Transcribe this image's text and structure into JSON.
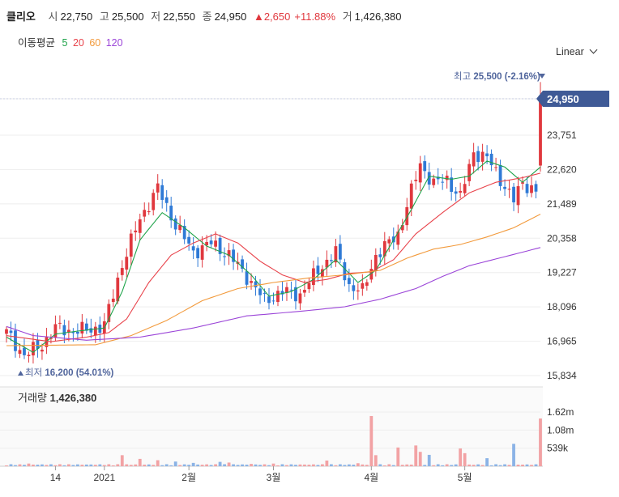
{
  "header": {
    "name": "클리오",
    "open_label": "시",
    "open": "22,750",
    "high_label": "고",
    "high": "25,500",
    "low_label": "저",
    "low": "22,550",
    "close_label": "종",
    "close": "24,950",
    "change": "▲2,650",
    "change_pct": "+11.88%",
    "volume_label": "거",
    "volume": "1,426,380"
  },
  "ma_legend": {
    "label": "이동평균",
    "items": [
      {
        "period": "5",
        "color": "#1fa34a"
      },
      {
        "period": "20",
        "color": "#e8424a"
      },
      {
        "period": "60",
        "color": "#f29a3c"
      },
      {
        "period": "120",
        "color": "#9b45d8"
      }
    ]
  },
  "scale_selector": "Linear",
  "colors": {
    "up": "#e0383e",
    "down": "#2f7ad6",
    "grid": "#eeeeee",
    "price_tag": "#3f5a96",
    "vol_up": "#f2a2a4",
    "vol_down": "#8bb3e6"
  },
  "chart_data": [
    {
      "type": "candlestick",
      "y_ticks": [
        "24,950",
        "23,751",
        "22,620",
        "21,489",
        "20,358",
        "19,227",
        "18,096",
        "16,965",
        "15,834"
      ],
      "y_tick_values": [
        24950,
        23751,
        22620,
        21489,
        20358,
        19227,
        18096,
        16965,
        15834
      ],
      "ylim": [
        15834,
        25500
      ],
      "x_tick_labels": [
        "14",
        "2021",
        "2월",
        "3월",
        "4월",
        "5월"
      ],
      "x_tick_index": [
        11,
        22,
        41,
        60,
        82,
        103
      ],
      "current_price": "24,950",
      "max_label": "최고",
      "max_value": "25,500 (-2.16%)",
      "min_label": "최저",
      "min_value": "16,200 (54.01%)",
      "n_candles": 121,
      "close_anchors": [
        [
          0,
          17250
        ],
        [
          4,
          16500
        ],
        [
          8,
          16850
        ],
        [
          11,
          17400
        ],
        [
          15,
          17300
        ],
        [
          19,
          17350
        ],
        [
          22,
          17500
        ],
        [
          26,
          19500
        ],
        [
          30,
          21000
        ],
        [
          34,
          22000
        ],
        [
          38,
          20800
        ],
        [
          42,
          19900
        ],
        [
          46,
          20200
        ],
        [
          50,
          19800
        ],
        [
          54,
          19100
        ],
        [
          58,
          18300
        ],
        [
          62,
          18600
        ],
        [
          66,
          18500
        ],
        [
          70,
          19300
        ],
        [
          74,
          19900
        ],
        [
          77,
          18800
        ],
        [
          80,
          18600
        ],
        [
          83,
          19800
        ],
        [
          86,
          20200
        ],
        [
          88,
          20500
        ],
        [
          91,
          21900
        ],
        [
          93,
          22800
        ],
        [
          96,
          22150
        ],
        [
          99,
          22300
        ],
        [
          102,
          21700
        ],
        [
          105,
          23200
        ],
        [
          108,
          23000
        ],
        [
          111,
          22300
        ],
        [
          114,
          21600
        ],
        [
          116,
          22200
        ],
        [
          119,
          21900
        ],
        [
          120,
          24950
        ]
      ],
      "moving_averages": [
        {
          "period": "5",
          "points": [
            [
              0,
              17100
            ],
            [
              6,
              16600
            ],
            [
              11,
              17200
            ],
            [
              16,
              17300
            ],
            [
              22,
              17400
            ],
            [
              26,
              18600
            ],
            [
              30,
              20300
            ],
            [
              35,
              21200
            ],
            [
              40,
              20700
            ],
            [
              45,
              20100
            ],
            [
              50,
              19800
            ],
            [
              55,
              19150
            ],
            [
              59,
              18450
            ],
            [
              64,
              18600
            ],
            [
              69,
              19000
            ],
            [
              74,
              19650
            ],
            [
              79,
              18900
            ],
            [
              83,
              19300
            ],
            [
              87,
              20300
            ],
            [
              91,
              21300
            ],
            [
              95,
              22400
            ],
            [
              100,
              22300
            ],
            [
              104,
              22400
            ],
            [
              108,
              22900
            ],
            [
              112,
              22700
            ],
            [
              116,
              22200
            ],
            [
              120,
              22700
            ]
          ]
        },
        {
          "period": "20",
          "points": [
            [
              0,
              17150
            ],
            [
              10,
              16950
            ],
            [
              18,
              17100
            ],
            [
              23,
              17250
            ],
            [
              27,
              17700
            ],
            [
              32,
              18900
            ],
            [
              37,
              19800
            ],
            [
              42,
              20200
            ],
            [
              47,
              20500
            ],
            [
              52,
              20200
            ],
            [
              57,
              19600
            ],
            [
              62,
              19150
            ],
            [
              67,
              18900
            ],
            [
              72,
              19000
            ],
            [
              77,
              19200
            ],
            [
              82,
              19250
            ],
            [
              87,
              19650
            ],
            [
              92,
              20500
            ],
            [
              98,
              21200
            ],
            [
              104,
              21850
            ],
            [
              110,
              22200
            ],
            [
              116,
              22350
            ],
            [
              120,
              22500
            ]
          ]
        },
        {
          "period": "60",
          "points": [
            [
              0,
              16820
            ],
            [
              20,
              16850
            ],
            [
              28,
              17150
            ],
            [
              36,
              17650
            ],
            [
              44,
              18300
            ],
            [
              52,
              18700
            ],
            [
              60,
              18900
            ],
            [
              68,
              19050
            ],
            [
              76,
              19150
            ],
            [
              84,
              19300
            ],
            [
              90,
              19700
            ],
            [
              96,
              20000
            ],
            [
              102,
              20150
            ],
            [
              108,
              20400
            ],
            [
              114,
              20700
            ],
            [
              120,
              21150
            ]
          ]
        },
        {
          "period": "120",
          "points": [
            [
              0,
              17450
            ],
            [
              6,
              17150
            ],
            [
              18,
              17000
            ],
            [
              30,
              17100
            ],
            [
              42,
              17400
            ],
            [
              54,
              17800
            ],
            [
              66,
              17950
            ],
            [
              76,
              18100
            ],
            [
              84,
              18350
            ],
            [
              92,
              18700
            ],
            [
              98,
              19100
            ],
            [
              104,
              19450
            ],
            [
              112,
              19750
            ],
            [
              120,
              20050
            ]
          ]
        }
      ]
    },
    {
      "type": "bar",
      "title": "거래량",
      "value": "1,426,380",
      "y_ticks": [
        "1.62m",
        "1.08m",
        "539k"
      ],
      "y_tick_values": [
        1620000,
        1080000,
        539000
      ],
      "ylim": [
        0,
        1800000
      ],
      "spikes": [
        [
          5,
          80000
        ],
        [
          12,
          60000
        ],
        [
          26,
          330000
        ],
        [
          30,
          220000
        ],
        [
          34,
          180000
        ],
        [
          38,
          140000
        ],
        [
          42,
          100000
        ],
        [
          48,
          130000
        ],
        [
          50,
          110000
        ],
        [
          55,
          70000
        ],
        [
          60,
          80000
        ],
        [
          72,
          170000
        ],
        [
          79,
          90000
        ],
        [
          82,
          1500000
        ],
        [
          83,
          330000
        ],
        [
          88,
          560000
        ],
        [
          92,
          620000
        ],
        [
          93,
          430000
        ],
        [
          95,
          340000
        ],
        [
          102,
          530000
        ],
        [
          103,
          390000
        ],
        [
          108,
          240000
        ],
        [
          114,
          670000
        ],
        [
          120,
          1426380
        ]
      ]
    }
  ]
}
